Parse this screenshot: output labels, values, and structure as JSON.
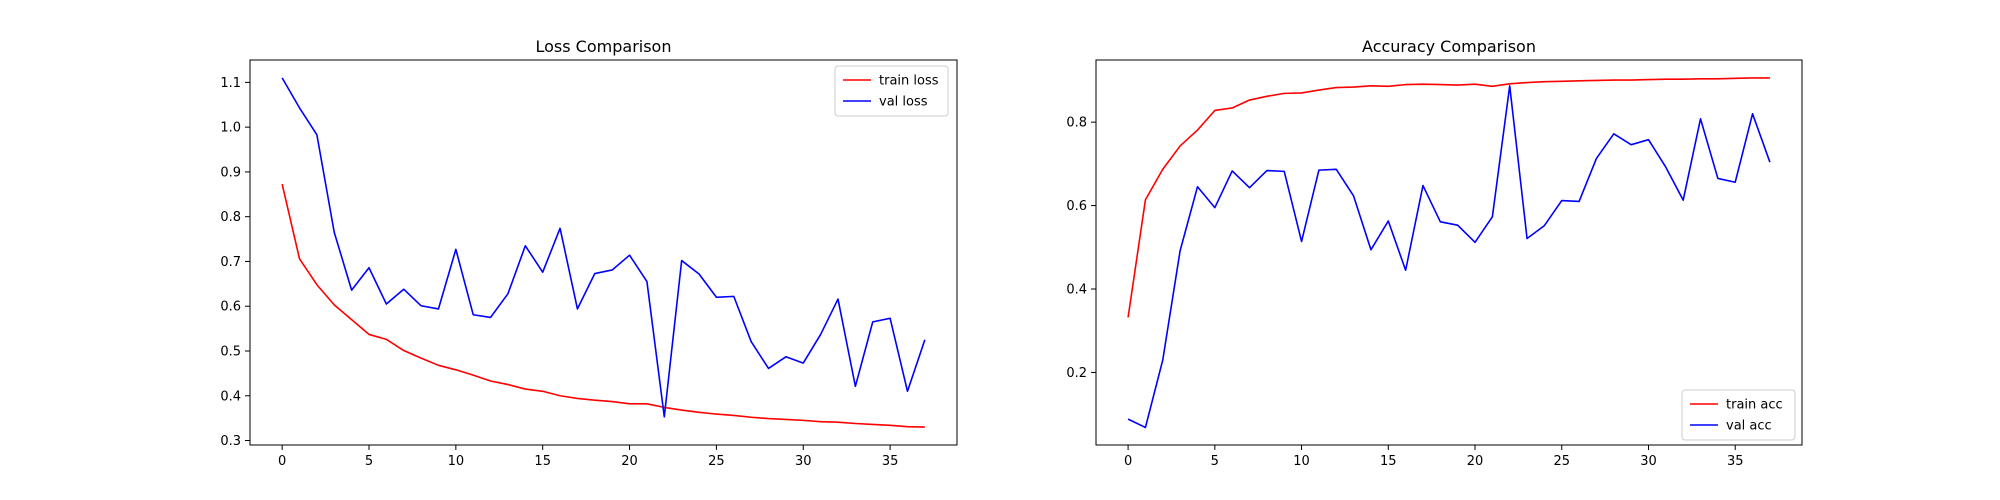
{
  "chart_data": [
    {
      "type": "line",
      "title": "Loss Comparison",
      "xlabel": "",
      "ylabel": "",
      "xlim": [
        -1.85,
        38.85
      ],
      "ylim": [
        0.29,
        1.15
      ],
      "xticks": [
        0,
        5,
        10,
        15,
        20,
        25,
        30,
        35
      ],
      "yticks": [
        0.3,
        0.4,
        0.5,
        0.6,
        0.7,
        0.8,
        0.9,
        1.0,
        1.1
      ],
      "ytick_labels": [
        "0.3",
        "0.4",
        "0.5",
        "0.6",
        "0.7",
        "0.8",
        "0.9",
        "1.0",
        "1.1"
      ],
      "legend_position": "top-right",
      "grid": false,
      "series": [
        {
          "name": "train loss",
          "color": "#ff0000",
          "x": [
            0,
            1,
            2,
            3,
            4,
            5,
            6,
            7,
            8,
            9,
            10,
            11,
            12,
            13,
            14,
            15,
            16,
            17,
            18,
            19,
            20,
            21,
            22,
            23,
            24,
            25,
            26,
            27,
            28,
            29,
            30,
            31,
            32,
            33,
            34,
            35,
            36,
            37
          ],
          "values": [
            0.873,
            0.706,
            0.648,
            0.603,
            0.57,
            0.537,
            0.526,
            0.501,
            0.484,
            0.468,
            0.458,
            0.446,
            0.433,
            0.425,
            0.415,
            0.41,
            0.4,
            0.394,
            0.39,
            0.387,
            0.382,
            0.382,
            0.374,
            0.368,
            0.363,
            0.359,
            0.356,
            0.352,
            0.349,
            0.347,
            0.345,
            0.342,
            0.341,
            0.338,
            0.336,
            0.334,
            0.331,
            0.33
          ]
        },
        {
          "name": "val loss",
          "color": "#0000ff",
          "x": [
            0,
            1,
            2,
            3,
            4,
            5,
            6,
            7,
            8,
            9,
            10,
            11,
            12,
            13,
            14,
            15,
            16,
            17,
            18,
            19,
            20,
            21,
            22,
            23,
            24,
            25,
            26,
            27,
            28,
            29,
            30,
            31,
            32,
            33,
            34,
            35,
            36,
            37
          ],
          "values": [
            1.11,
            1.043,
            0.983,
            0.765,
            0.636,
            0.686,
            0.605,
            0.638,
            0.601,
            0.594,
            0.727,
            0.581,
            0.575,
            0.628,
            0.735,
            0.676,
            0.774,
            0.594,
            0.673,
            0.681,
            0.714,
            0.655,
            0.353,
            0.702,
            0.672,
            0.62,
            0.622,
            0.521,
            0.461,
            0.487,
            0.473,
            0.537,
            0.616,
            0.421,
            0.565,
            0.573,
            0.41,
            0.525
          ]
        }
      ]
    },
    {
      "type": "line",
      "title": "Accuracy Comparison",
      "xlabel": "",
      "ylabel": "",
      "xlim": [
        -1.85,
        38.85
      ],
      "ylim": [
        0.026,
        0.949
      ],
      "xticks": [
        0,
        5,
        10,
        15,
        20,
        25,
        30,
        35
      ],
      "yticks": [
        0.2,
        0.4,
        0.6,
        0.8
      ],
      "ytick_labels": [
        "0.2",
        "0.4",
        "0.6",
        "0.8"
      ],
      "legend_position": "bottom-right",
      "grid": false,
      "series": [
        {
          "name": "train acc",
          "color": "#ff0000",
          "x": [
            0,
            1,
            2,
            3,
            4,
            5,
            6,
            7,
            8,
            9,
            10,
            11,
            12,
            13,
            14,
            15,
            16,
            17,
            18,
            19,
            20,
            21,
            22,
            23,
            24,
            25,
            26,
            27,
            28,
            29,
            30,
            31,
            32,
            33,
            34,
            35,
            36,
            37
          ],
          "values": [
            0.332,
            0.614,
            0.687,
            0.743,
            0.781,
            0.828,
            0.834,
            0.853,
            0.862,
            0.869,
            0.87,
            0.877,
            0.883,
            0.884,
            0.887,
            0.886,
            0.89,
            0.891,
            0.89,
            0.889,
            0.891,
            0.886,
            0.892,
            0.895,
            0.897,
            0.898,
            0.899,
            0.9,
            0.901,
            0.901,
            0.902,
            0.903,
            0.903,
            0.904,
            0.904,
            0.905,
            0.906,
            0.906
          ]
        },
        {
          "name": "val acc",
          "color": "#0000ff",
          "x": [
            0,
            1,
            2,
            3,
            4,
            5,
            6,
            7,
            8,
            9,
            10,
            11,
            12,
            13,
            14,
            15,
            16,
            17,
            18,
            19,
            20,
            21,
            22,
            23,
            24,
            25,
            26,
            27,
            28,
            29,
            30,
            31,
            32,
            33,
            34,
            35,
            36,
            37
          ],
          "values": [
            0.088,
            0.068,
            0.23,
            0.492,
            0.645,
            0.595,
            0.683,
            0.643,
            0.684,
            0.682,
            0.514,
            0.685,
            0.687,
            0.623,
            0.494,
            0.563,
            0.445,
            0.648,
            0.561,
            0.553,
            0.512,
            0.573,
            0.887,
            0.521,
            0.552,
            0.612,
            0.61,
            0.713,
            0.772,
            0.746,
            0.758,
            0.692,
            0.613,
            0.808,
            0.665,
            0.656,
            0.82,
            0.704
          ]
        }
      ]
    }
  ]
}
